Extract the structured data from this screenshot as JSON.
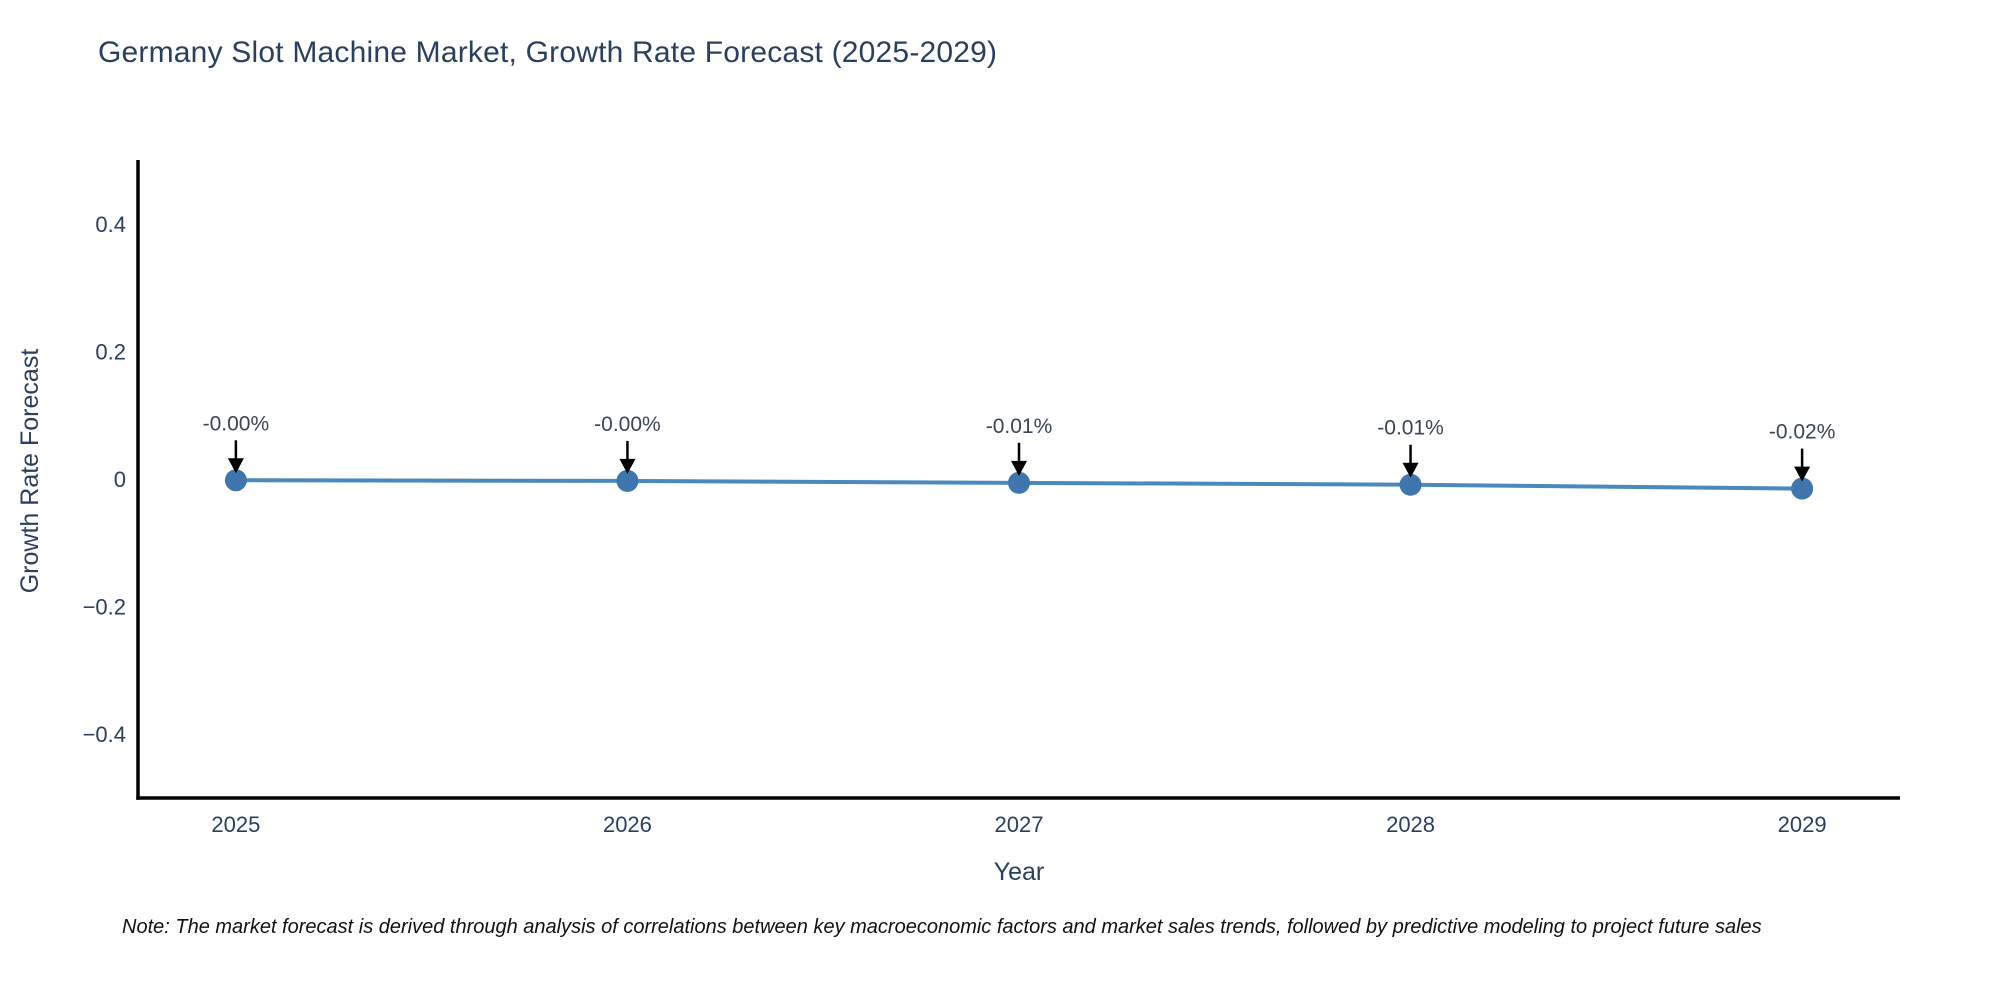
{
  "figure": {
    "title": "Germany Slot Machine Market, Growth Rate Forecast (2025-2029)",
    "footnote": "Note: The market forecast is derived through analysis of correlations between key macroeconomic factors and market sales trends, followed by predictive modeling to project future sales"
  },
  "colors": {
    "background": "#ffffff",
    "title_text": "#2a3f5f",
    "axis_text": "#2a3f5f",
    "axis_line": "#000000",
    "line": "#4a89bd",
    "marker": "#3f76ad",
    "annotation_text": "#3a4556",
    "annotation_arrow": "#000000",
    "footnote_text": "#111111"
  },
  "chart_data": {
    "type": "line",
    "title": "Germany Slot Machine Market, Growth Rate Forecast (2025-2029)",
    "xlabel": "Year",
    "ylabel": "Growth Rate Forecast",
    "x": [
      2025,
      2026,
      2027,
      2028,
      2029
    ],
    "series": [
      {
        "name": "Growth Rate Forecast",
        "values": [
          -0.002,
          -0.003,
          -0.006,
          -0.009,
          -0.015
        ]
      }
    ],
    "point_labels": [
      "-0.00%",
      "-0.00%",
      "-0.01%",
      "-0.01%",
      "-0.02%"
    ],
    "xtick_labels": [
      "2025",
      "2026",
      "2027",
      "2028",
      "2029"
    ],
    "ytick_values": [
      0.4,
      0.2,
      0,
      -0.2,
      -0.4
    ],
    "ytick_labels": [
      "0.4",
      "0.2",
      "0",
      "−0.2",
      "−0.4"
    ],
    "xlim": [
      2024.75,
      2029.25
    ],
    "ylim": [
      -0.5,
      0.5
    ],
    "grid": false,
    "legend": false,
    "marker_size": 11,
    "line_width": 4
  }
}
